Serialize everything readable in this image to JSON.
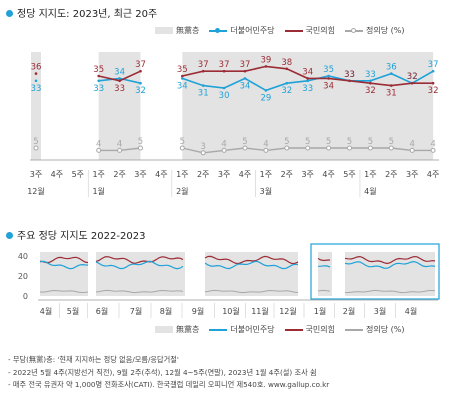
{
  "top_title": "정당 지지도: 2023년, 최근 20주",
  "bottom_title": "주요 정당 지지도 2022-2023",
  "legend": {
    "independent": "無黨층",
    "democratic": "더불어민주당",
    "ppp": "국민의힘",
    "justice": "정의당 (%)",
    "justice_bottom": "정의당 (%)"
  },
  "colors": {
    "independent": "#e3e3e3",
    "democratic": "#1fa2d8",
    "ppp": "#9b2b34",
    "justice": "#a8a8a8",
    "highlight_box": "#1fa2d8"
  },
  "notes": [
    "- 무당(無黨)층: '현재 지지하는 정당 없음/모름/응답거절'",
    "- 2022년 5월 4주(지방선거 직전), 9월 2주(추석), 12월 4~5주(연말), 2023년 1월 4주(설) 조사 쉼",
    "- 매주 전국 유권자 약 1,000명 전화조사(CATI). 한국갤럽 데일리 오피니언 제540호. www.gallup.co.kr"
  ],
  "chart_data": [
    {
      "type": "line",
      "title": "정당 지지도: 2023년, 최근 20주",
      "week_labels": [
        "3주",
        "4주",
        "5주",
        "1주",
        "2주",
        "3주",
        "4주",
        "1주",
        "2주",
        "3주",
        "4주",
        "1주",
        "2주",
        "3주",
        "4주",
        "5주",
        "1주",
        "2주",
        "3주",
        "4주"
      ],
      "month_labels": [
        {
          "label": "12월",
          "at": 0
        },
        {
          "label": "1월",
          "at": 3
        },
        {
          "label": "2월",
          "at": 7
        },
        {
          "label": "3월",
          "at": 11
        },
        {
          "label": "4월",
          "at": 16
        }
      ],
      "segments": [
        [
          0,
          0
        ],
        [
          3,
          5
        ],
        [
          7,
          19
        ]
      ],
      "series": [
        {
          "name": "無黨층",
          "key": "independent",
          "values": [
            null,
            null,
            null,
            null,
            null,
            null,
            null,
            null,
            null,
            null,
            null,
            null,
            null,
            null,
            null,
            null,
            null,
            null,
            null,
            null
          ],
          "area": true
        },
        {
          "name": "더불어민주당",
          "key": "democratic",
          "values": [
            33,
            null,
            null,
            33,
            34,
            32,
            null,
            34,
            31,
            30,
            34,
            29,
            32,
            33,
            35,
            33,
            33,
            36,
            32,
            37
          ]
        },
        {
          "name": "국민의힘",
          "key": "ppp",
          "values": [
            36,
            null,
            null,
            35,
            33,
            37,
            null,
            35,
            37,
            37,
            37,
            39,
            38,
            34,
            34,
            33,
            32,
            31,
            32,
            32
          ]
        },
        {
          "name": "정의당",
          "key": "justice",
          "values": [
            5,
            null,
            null,
            4,
            4,
            5,
            null,
            5,
            3,
            4,
            5,
            4,
            5,
            5,
            5,
            5,
            5,
            5,
            4,
            4
          ]
        }
      ],
      "ylim": [
        0,
        45
      ]
    },
    {
      "type": "line",
      "title": "주요 정당 지지도 2022-2023",
      "x_labels": [
        "4월",
        "5월",
        "6월",
        "7월",
        "8월",
        "9월",
        "10월",
        "11월",
        "12월",
        "1월",
        "2월",
        "3월",
        "4월"
      ],
      "y_ticks": [
        0,
        20,
        40
      ],
      "ylim": [
        0,
        50
      ],
      "highlight": "최근 20주 (2022년 12월 3주 ~ 2023년 4월 4주)"
    }
  ]
}
